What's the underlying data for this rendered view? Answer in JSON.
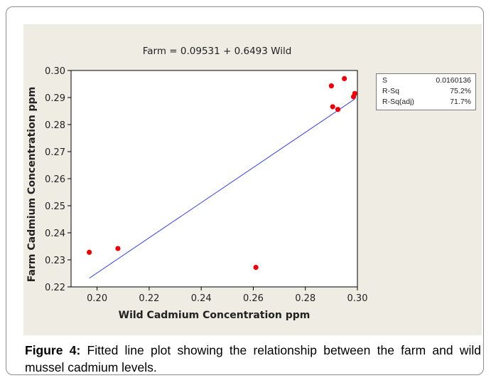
{
  "caption": {
    "label": "Figure 4:",
    "text": "Fitted line plot showing the relationship between the farm and wild mussel cadmium levels."
  },
  "stats_box": [
    {
      "key": "S",
      "value": "0.0160136"
    },
    {
      "key": "R-Sq",
      "value": "75.2%"
    },
    {
      "key": "R-Sq(adj)",
      "value": "71.7%"
    }
  ],
  "colors": {
    "panel": "#efece4",
    "point": "#e8000b",
    "fit_line": "#3b43d8",
    "axis": "#000000"
  },
  "chart_data": {
    "type": "scatter",
    "title": "Farm = 0.09531 + 0.6493 Wild",
    "xlabel": "Wild Cadmium Concentration ppm",
    "ylabel": "Farm Cadmium Concentration ppm",
    "xlim": [
      0.19,
      0.3
    ],
    "ylim": [
      0.22,
      0.3
    ],
    "x_ticks": [
      "0.20",
      "0.22",
      "0.24",
      "0.26",
      "0.28",
      "0.30"
    ],
    "y_ticks": [
      "0.22",
      "0.23",
      "0.24",
      "0.25",
      "0.26",
      "0.27",
      "0.28",
      "0.29",
      "0.30"
    ],
    "grid": false,
    "fit": {
      "intercept": 0.09531,
      "slope": 0.6493,
      "x_range": [
        0.197,
        0.299
      ]
    },
    "points": [
      {
        "x": 0.197,
        "y": 0.2328
      },
      {
        "x": 0.208,
        "y": 0.2342
      },
      {
        "x": 0.261,
        "y": 0.2272
      },
      {
        "x": 0.29,
        "y": 0.2943
      },
      {
        "x": 0.2905,
        "y": 0.2866
      },
      {
        "x": 0.2925,
        "y": 0.2856
      },
      {
        "x": 0.295,
        "y": 0.297
      },
      {
        "x": 0.2985,
        "y": 0.2903
      },
      {
        "x": 0.299,
        "y": 0.2915
      }
    ]
  }
}
